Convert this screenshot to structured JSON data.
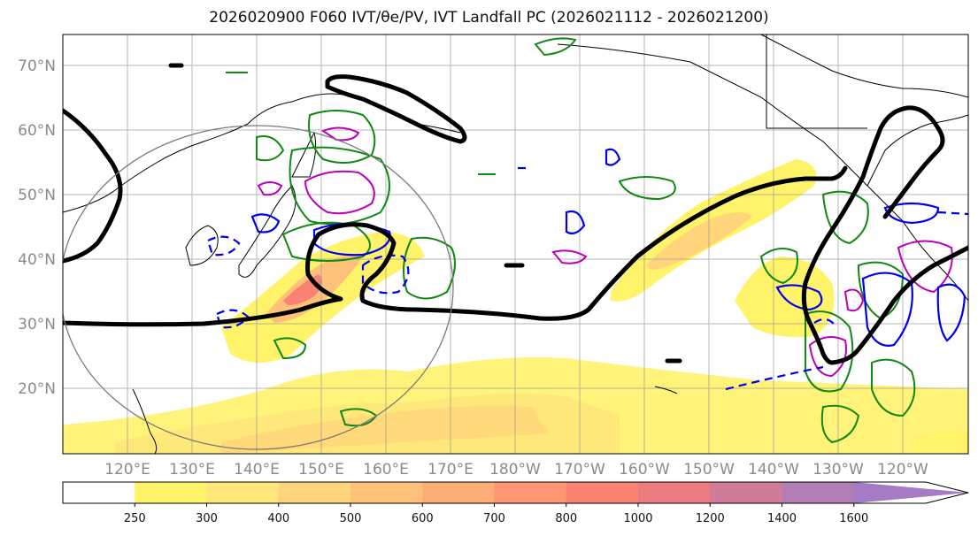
{
  "title": "2026020900 F060 IVT/θe/PV, IVT Landfall PC (2026021112 - 2026021200)",
  "map": {
    "lat_labels": [
      "70°N",
      "60°N",
      "50°N",
      "40°N",
      "30°N",
      "20°N"
    ],
    "lon_labels": [
      "120°E",
      "130°E",
      "140°E",
      "150°E",
      "160°E",
      "170°E",
      "180°W",
      "170°W",
      "160°W",
      "150°W",
      "140°W",
      "130°W",
      "120°W"
    ],
    "colors": {
      "theta_e_contour": "#000000",
      "pv_solid": "#0000ee",
      "magenta": "#bb00bb",
      "green": "#118811"
    }
  },
  "colorbar": {
    "ticks": [
      "250",
      "300",
      "400",
      "500",
      "600",
      "700",
      "800",
      "1000",
      "1200",
      "1400",
      "1600"
    ],
    "colors": [
      "#ffffff",
      "#fff36a",
      "#ffe77a",
      "#ffd47a",
      "#ffc07a",
      "#ffad76",
      "#ff9572",
      "#f98273",
      "#ec7a7e",
      "#d07b9a",
      "#b27cb4",
      "#a67bc6"
    ]
  }
}
